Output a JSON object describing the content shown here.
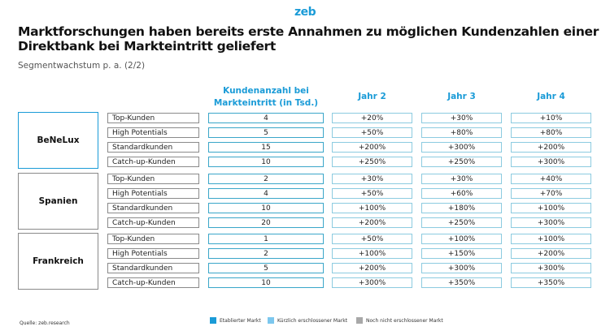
{
  "logo": "zeb",
  "title": "Marktforschungen haben bereits erste Annahmen zu möglichen Kundenzahlen einer Direktbank bei Markteintritt geliefert",
  "subtitle": "Segmentwachstum p. a. (2/2)",
  "headers": {
    "count_line1": "Kundenanzahl bei",
    "count_line2": "Markteintritt (in Tsd.)",
    "year2": "Jahr 2",
    "year3": "Jahr 3",
    "year4": "Jahr 4"
  },
  "regions": [
    {
      "name": "BeNeLux",
      "market": "Etablierter Markt",
      "rows": [
        {
          "segment": "Top-Kunden",
          "count": "4",
          "y2": "+20%",
          "y3": "+30%",
          "y4": "+10%"
        },
        {
          "segment": "High Potentials",
          "count": "5",
          "y2": "+50%",
          "y3": "+80%",
          "y4": "+80%"
        },
        {
          "segment": "Standardkunden",
          "count": "15",
          "y2": "+200%",
          "y3": "+300%",
          "y4": "+200%"
        },
        {
          "segment": "Catch-up-Kunden",
          "count": "10",
          "y2": "+250%",
          "y3": "+250%",
          "y4": "+300%"
        }
      ]
    },
    {
      "name": "Spanien",
      "market": "Noch nicht erschlossener Markt",
      "rows": [
        {
          "segment": "Top-Kunden",
          "count": "2",
          "y2": "+30%",
          "y3": "+30%",
          "y4": "+40%"
        },
        {
          "segment": "High Potentials",
          "count": "4",
          "y2": "+50%",
          "y3": "+60%",
          "y4": "+70%"
        },
        {
          "segment": "Standardkunden",
          "count": "10",
          "y2": "+100%",
          "y3": "+180%",
          "y4": "+100%"
        },
        {
          "segment": "Catch-up-Kunden",
          "count": "20",
          "y2": "+200%",
          "y3": "+250%",
          "y4": "+300%"
        }
      ]
    },
    {
      "name": "Frankreich",
      "market": "Noch nicht erschlossener Markt",
      "rows": [
        {
          "segment": "Top-Kunden",
          "count": "1",
          "y2": "+50%",
          "y3": "+100%",
          "y4": "+100%"
        },
        {
          "segment": "High Potentials",
          "count": "2",
          "y2": "+100%",
          "y3": "+150%",
          "y4": "+200%"
        },
        {
          "segment": "Standardkunden",
          "count": "5",
          "y2": "+200%",
          "y3": "+300%",
          "y4": "+300%"
        },
        {
          "segment": "Catch-up-Kunden",
          "count": "10",
          "y2": "+300%",
          "y3": "+350%",
          "y4": "+350%"
        }
      ]
    }
  ],
  "source": "Quelle: zeb.research",
  "legend": [
    {
      "label": "Etablierter Markt",
      "color": "#1a9bd7"
    },
    {
      "label": "Kürzlich erschlossener Markt",
      "color": "#7cc7ee"
    },
    {
      "label": "Noch nicht erschlossener Markt",
      "color": "#a8a8a8"
    }
  ]
}
